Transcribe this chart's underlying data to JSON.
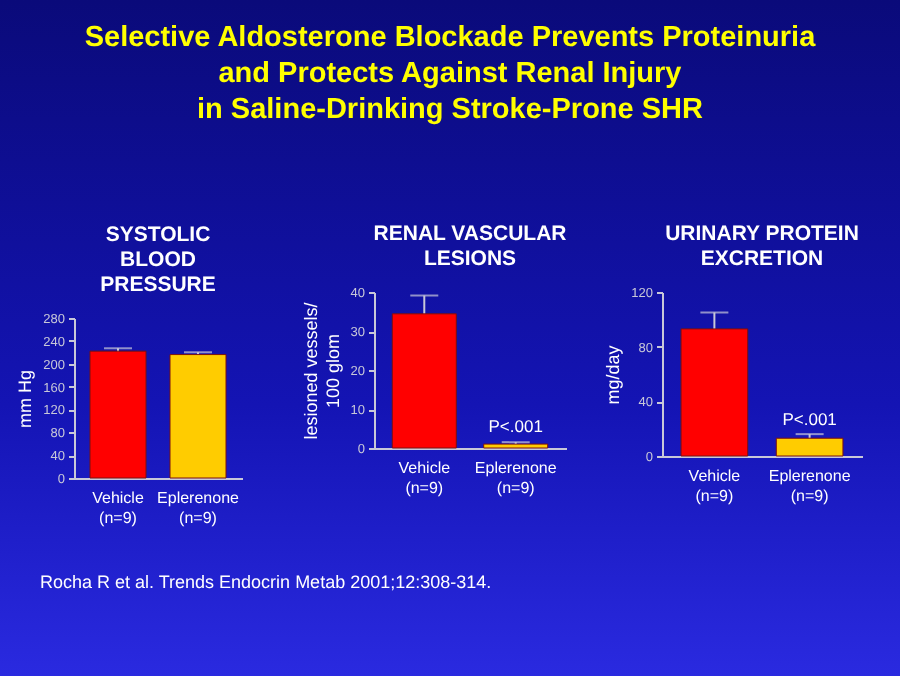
{
  "chart_data": [
    {
      "type": "bar",
      "title": "SYSTOLIC\nBLOOD\nPRESSURE",
      "ylabel": "mm Hg",
      "annotations": [
        "Selective Aldosterone Blockade Prevents Proteinuria\nand Protects Against Renal Injury\nin Saline-Drinking Stroke-Prone SHR"
      ],
      "categories": [
        "Vehicle\n(n=9)",
        "Eplerenone\n(n=9)"
      ],
      "values": [
        222,
        216
      ],
      "errors": [
        5,
        4
      ],
      "colors": [
        "#ff0000",
        "#ffcc00"
      ],
      "ylim": [
        0,
        280
      ],
      "yticks": [
        0,
        40,
        80,
        120,
        160,
        200,
        240,
        280
      ],
      "grid": false,
      "legend": false
    },
    {
      "type": "bar",
      "title": "RENAL VASCULAR\nLESIONS",
      "ylabel": "lesioned vessels/\n100 glom",
      "annotations": [
        {
          "text": "P<.001",
          "x": "Eplerenone\n(n=9)",
          "y": 1.5
        }
      ],
      "categories": [
        "Vehicle\n(n=9)",
        "Eplerenone\n(n=9)"
      ],
      "values": [
        34.4,
        1
      ],
      "errors": [
        4.7,
        0.5
      ],
      "colors": [
        "#ff0000",
        "#ffcc00"
      ],
      "ylim": [
        0,
        40
      ],
      "yticks": [
        0,
        10,
        20,
        30,
        40
      ],
      "grid": false,
      "legend": false
    },
    {
      "type": "bar",
      "title": "URINARY PROTEIN\nEXCRETION",
      "ylabel": "mg/day",
      "annotations": [
        {
          "text": "P<.001",
          "x": "Eplerenone\n(n=9)",
          "y": 15.6
        },
        "Rocha R et al. Trends Endocrin Metab 2001;12:308-314."
      ],
      "categories": [
        "Vehicle\n(n=9)",
        "Eplerenone\n(n=9)"
      ],
      "values": [
        93,
        13
      ],
      "errors": [
        12,
        3
      ],
      "colors": [
        "#ff0000",
        "#ffcc00"
      ],
      "ylim": [
        0,
        120
      ],
      "yticks": [
        0,
        40,
        80,
        120
      ],
      "grid": false,
      "legend": false
    }
  ]
}
